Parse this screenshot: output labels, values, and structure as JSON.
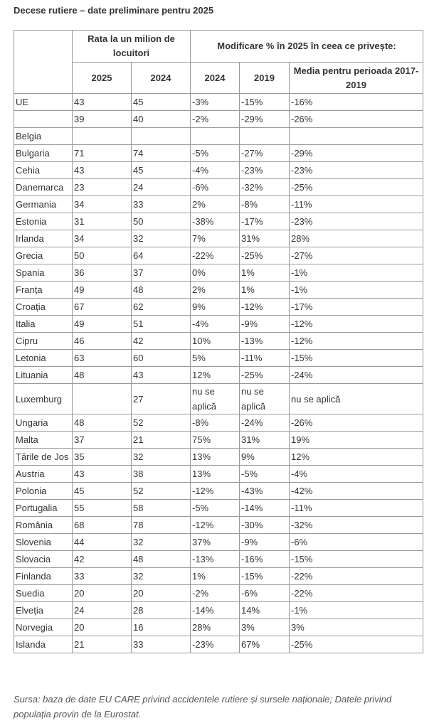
{
  "title": "Decese rutiere – date preliminare pentru 2025",
  "table": {
    "header": [
      [
        "Rata la un milion de locuitori",
        "Modificare % în 2025 în ceea ce privește:"
      ],
      [
        "2025",
        "2024",
        "2024",
        "2019",
        "Media pentru perioada 2017-2019"
      ]
    ],
    "rows": [
      [
        "UE",
        "43",
        "45",
        "-3%",
        "-15%",
        "-16%"
      ],
      [
        null,
        "39",
        "40",
        "-2%",
        "-29%",
        "-26%"
      ],
      [
        "Belgia",
        null,
        null,
        null,
        null,
        null
      ],
      [
        "Bulgaria",
        "71",
        "74",
        "-5%",
        "-27%",
        "-29%"
      ],
      [
        "Cehia",
        "43",
        "45",
        "-4%",
        "-23%",
        "-23%"
      ],
      [
        "Danemarca",
        "23",
        "24",
        "-6%",
        "-32%",
        "-25%"
      ],
      [
        "Germania",
        "34",
        "33",
        "2%",
        "-8%",
        "-11%"
      ],
      [
        "Estonia",
        "31",
        "50",
        "-38%",
        "-17%",
        "-23%"
      ],
      [
        "Irlanda",
        "34",
        "32",
        "7%",
        "31%",
        "28%"
      ],
      [
        "Grecia",
        "50",
        "64",
        "-22%",
        "-25%",
        "-27%"
      ],
      [
        "Spania",
        "36",
        "37",
        "0%",
        "1%",
        "-1%"
      ],
      [
        "Franța",
        "49",
        "48",
        "2%",
        "1%",
        "-1%"
      ],
      [
        "Croația",
        "67",
        "62",
        "9%",
        "-12%",
        "-17%"
      ],
      [
        "Italia",
        "49",
        "51",
        "-4%",
        "-9%",
        "-12%"
      ],
      [
        "Cipru",
        "46",
        "42",
        "10%",
        "-13%",
        "-12%"
      ],
      [
        "Letonia",
        "63",
        "60",
        "5%",
        "-11%",
        "-15%"
      ],
      [
        "Lituania",
        "48",
        "43",
        "12%",
        "-25%",
        "-24%"
      ],
      [
        "Luxemburg",
        null,
        "27",
        "nu se aplică",
        "nu se aplică",
        "nu se aplică"
      ],
      [
        "Ungaria",
        "48",
        "52",
        "-8%",
        "-24%",
        "-26%"
      ],
      [
        "Malta",
        "37",
        "21",
        "75%",
        "31%",
        "19%"
      ],
      [
        "Țările de Jos",
        "35",
        "32",
        "13%",
        "9%",
        "12%"
      ],
      [
        "Austria",
        "43",
        "38",
        "13%",
        "-5%",
        "-4%"
      ],
      [
        "Polonia",
        "45",
        "52",
        "-12%",
        "-43%",
        "-42%"
      ],
      [
        "Portugalia",
        "55",
        "58",
        "-5%",
        "-14%",
        "-11%"
      ],
      [
        "România",
        "68",
        "78",
        "-12%",
        "-30%",
        "-32%"
      ],
      [
        "Slovenia",
        "44",
        "32",
        "37%",
        "-9%",
        "-6%"
      ],
      [
        "Slovacia",
        "42",
        "48",
        "-13%",
        "-16%",
        "-15%"
      ],
      [
        "Finlanda",
        "33",
        "32",
        "1%",
        "-15%",
        "-22%"
      ],
      [
        "Suedia",
        "20",
        "20",
        "-2%",
        "-6%",
        "-22%"
      ],
      [
        "Elveția",
        "24",
        "28",
        "-14%",
        "14%",
        "-1%"
      ],
      [
        "Norvegia",
        "20",
        "16",
        "28%",
        "3%",
        "3%"
      ],
      [
        "Islanda",
        "21",
        "33",
        "-23%",
        "67%",
        "-25%"
      ]
    ]
  },
  "source": "Sursa: baza de date EU CARE privind accidentele rutiere și sursele naționale; Datele privind populația provin de la Eurostat."
}
